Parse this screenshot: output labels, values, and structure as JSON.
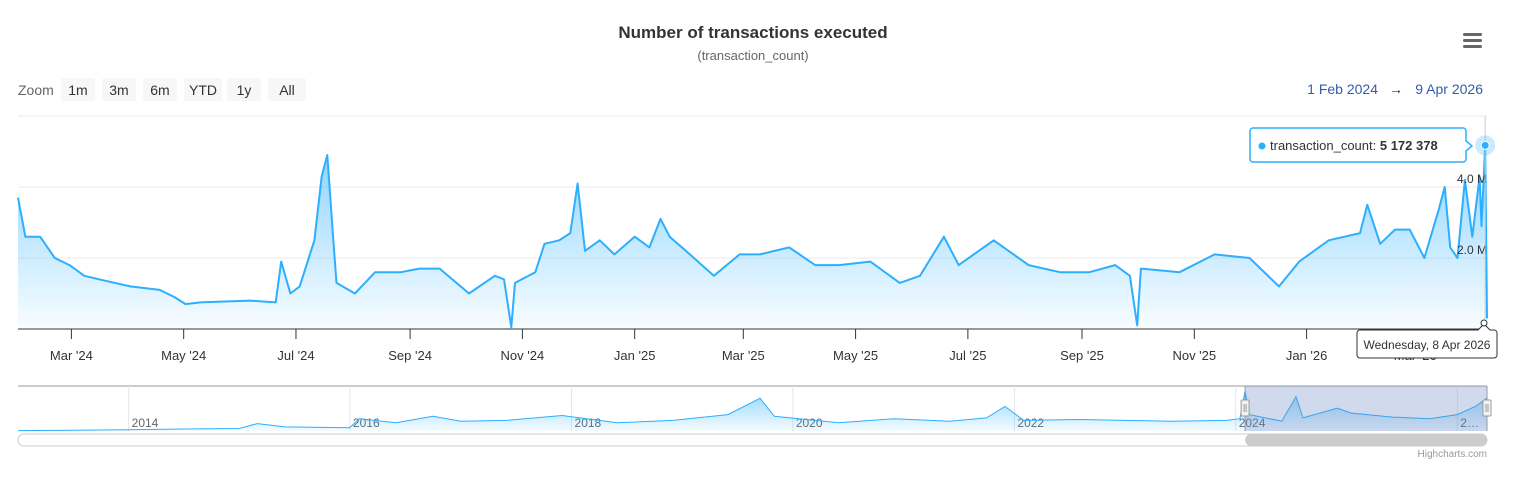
{
  "title": "Number of transactions executed",
  "subtitle": "(transaction_count)",
  "menu_icon": "hamburger-menu-icon",
  "range_selector": {
    "zoom_label": "Zoom",
    "buttons": [
      "1m",
      "3m",
      "6m",
      "YTD",
      "1y",
      "All"
    ],
    "from": "1 Feb 2024",
    "arrow": "→",
    "to": "9 Apr 2026"
  },
  "tooltip": {
    "series": "transaction_count",
    "value": "5 172 378",
    "date": "Wednesday, 8 Apr 2026"
  },
  "credits": "Highcharts.com",
  "colors": {
    "line": "#2caffe",
    "accent_text": "#335cad",
    "mask": "rgba(102,133,194,0.3)"
  },
  "chart_data": {
    "type": "area",
    "series": [
      {
        "name": "transaction_count",
        "points": [
          [
            "2024-02-01",
            3.7
          ],
          [
            "2024-02-05",
            2.6
          ],
          [
            "2024-02-13",
            2.6
          ],
          [
            "2024-02-21",
            2.0
          ],
          [
            "2024-02-29",
            1.8
          ],
          [
            "2024-03-08",
            1.5
          ],
          [
            "2024-03-16",
            1.4
          ],
          [
            "2024-04-02",
            1.2
          ],
          [
            "2024-04-18",
            1.1
          ],
          [
            "2024-04-26",
            0.9
          ],
          [
            "2024-05-02",
            0.7
          ],
          [
            "2024-05-10",
            0.75
          ],
          [
            "2024-06-06",
            0.8
          ],
          [
            "2024-06-20",
            0.75
          ],
          [
            "2024-06-23",
            1.9
          ],
          [
            "2024-06-28",
            1.0
          ],
          [
            "2024-07-03",
            1.2
          ],
          [
            "2024-07-11",
            2.5
          ],
          [
            "2024-07-15",
            4.3
          ],
          [
            "2024-07-18",
            4.9
          ],
          [
            "2024-07-21",
            2.7
          ],
          [
            "2024-07-23",
            1.3
          ],
          [
            "2024-08-02",
            1.0
          ],
          [
            "2024-08-13",
            1.6
          ],
          [
            "2024-08-27",
            1.6
          ],
          [
            "2024-09-06",
            1.7
          ],
          [
            "2024-09-17",
            1.7
          ],
          [
            "2024-10-03",
            1.0
          ],
          [
            "2024-10-17",
            1.5
          ],
          [
            "2024-10-22",
            1.4
          ],
          [
            "2024-10-26",
            0.05
          ],
          [
            "2024-10-28",
            1.3
          ],
          [
            "2024-11-08",
            1.6
          ],
          [
            "2024-11-13",
            2.4
          ],
          [
            "2024-11-21",
            2.5
          ],
          [
            "2024-11-27",
            2.7
          ],
          [
            "2024-12-01",
            4.1
          ],
          [
            "2024-12-05",
            2.2
          ],
          [
            "2024-12-13",
            2.5
          ],
          [
            "2024-12-21",
            2.1
          ],
          [
            "2025-01-01",
            2.6
          ],
          [
            "2025-01-09",
            2.3
          ],
          [
            "2025-01-15",
            3.1
          ],
          [
            "2025-01-20",
            2.6
          ],
          [
            "2025-01-31",
            2.1
          ],
          [
            "2025-02-13",
            1.5
          ],
          [
            "2025-02-27",
            2.1
          ],
          [
            "2025-03-10",
            2.1
          ],
          [
            "2025-03-26",
            2.3
          ],
          [
            "2025-04-09",
            1.8
          ],
          [
            "2025-04-22",
            1.8
          ],
          [
            "2025-05-09",
            1.9
          ],
          [
            "2025-05-25",
            1.3
          ],
          [
            "2025-06-05",
            1.5
          ],
          [
            "2025-06-18",
            2.6
          ],
          [
            "2025-06-26",
            1.8
          ],
          [
            "2025-07-15",
            2.5
          ],
          [
            "2025-08-03",
            1.8
          ],
          [
            "2025-08-20",
            1.6
          ],
          [
            "2025-09-05",
            1.6
          ],
          [
            "2025-09-19",
            1.8
          ],
          [
            "2025-09-27",
            1.5
          ],
          [
            "2025-10-01",
            0.1
          ],
          [
            "2025-10-03",
            1.7
          ],
          [
            "2025-10-24",
            1.6
          ],
          [
            "2025-11-12",
            2.1
          ],
          [
            "2025-12-01",
            2.0
          ],
          [
            "2025-12-17",
            1.2
          ],
          [
            "2025-12-28",
            1.9
          ],
          [
            "2026-01-13",
            2.5
          ],
          [
            "2026-01-30",
            2.7
          ],
          [
            "2026-02-03",
            3.5
          ],
          [
            "2026-02-10",
            2.4
          ],
          [
            "2026-02-18",
            2.8
          ],
          [
            "2026-02-26",
            2.8
          ],
          [
            "2026-03-06",
            2.0
          ],
          [
            "2026-03-14",
            3.4
          ],
          [
            "2026-03-17",
            4.0
          ],
          [
            "2026-03-20",
            2.3
          ],
          [
            "2026-03-24",
            2.0
          ],
          [
            "2026-03-28",
            4.2
          ],
          [
            "2026-04-01",
            2.6
          ],
          [
            "2026-04-05",
            4.3
          ],
          [
            "2026-04-06",
            2.9
          ],
          [
            "2026-04-08",
            5.172378
          ],
          [
            "2026-04-09",
            0.3
          ]
        ]
      }
    ],
    "x_range": [
      "2024-02-01",
      "2026-04-09"
    ],
    "x_ticks": [
      "Mar '24",
      "May '24",
      "Jul '24",
      "Sep '24",
      "Nov '24",
      "Jan '25",
      "Mar '25",
      "May '25",
      "Jul '25",
      "Sep '25",
      "Nov '25",
      "Jan '26",
      "Mar '26"
    ],
    "x_tick_dates": [
      "2024-03-01",
      "2024-05-01",
      "2024-07-01",
      "2024-09-01",
      "2024-11-01",
      "2025-01-01",
      "2025-03-01",
      "2025-05-01",
      "2025-07-01",
      "2025-09-01",
      "2025-11-01",
      "2026-01-01",
      "2026-03-01"
    ],
    "y_unit": "M",
    "ylim": [
      0,
      6
    ],
    "y_ticks": [
      {
        "value": 2,
        "label": "2.0 M"
      },
      {
        "value": 4,
        "label": "4.0 M"
      }
    ],
    "grid": true,
    "navigator": {
      "x_range": [
        "2013-01-01",
        "2026-04-09"
      ],
      "tick_labels": [
        "2014",
        "2016",
        "2018",
        "2020",
        "2022",
        "2024",
        "2…"
      ],
      "tick_dates": [
        "2014-01-01",
        "2016-01-01",
        "2018-01-01",
        "2020-01-01",
        "2022-01-01",
        "2024-01-01",
        "2026-01-01"
      ],
      "points": [
        [
          "2013-01-01",
          0.05
        ],
        [
          "2013-07-01",
          0.1
        ],
        [
          "2014-01-01",
          0.15
        ],
        [
          "2014-07-01",
          0.25
        ],
        [
          "2015-01-01",
          0.3
        ],
        [
          "2015-03-01",
          0.9
        ],
        [
          "2015-06-01",
          0.5
        ],
        [
          "2015-12-31",
          0.4
        ],
        [
          "2016-02-01",
          1.5
        ],
        [
          "2016-06-01",
          1.0
        ],
        [
          "2016-10-01",
          1.8
        ],
        [
          "2017-01-01",
          1.2
        ],
        [
          "2017-06-01",
          1.3
        ],
        [
          "2017-12-01",
          1.9
        ],
        [
          "2018-06-01",
          1.0
        ],
        [
          "2018-12-01",
          1.3
        ],
        [
          "2019-06-01",
          2.0
        ],
        [
          "2019-09-15",
          4.0
        ],
        [
          "2019-11-01",
          1.8
        ],
        [
          "2020-06-01",
          1.0
        ],
        [
          "2020-12-01",
          1.5
        ],
        [
          "2021-06-01",
          1.2
        ],
        [
          "2021-10-01",
          1.6
        ],
        [
          "2021-12-01",
          3.0
        ],
        [
          "2022-02-01",
          1.3
        ],
        [
          "2022-08-01",
          1.4
        ],
        [
          "2023-06-01",
          1.2
        ],
        [
          "2023-12-01",
          1.3
        ],
        [
          "2024-01-15",
          1.5
        ],
        [
          "2024-02-01",
          4.9
        ],
        [
          "2024-02-15",
          2.0
        ],
        [
          "2024-06-01",
          1.2
        ],
        [
          "2024-07-18",
          4.2
        ],
        [
          "2024-08-10",
          1.6
        ],
        [
          "2024-12-01",
          2.8
        ],
        [
          "2025-01-15",
          2.2
        ],
        [
          "2025-06-01",
          1.7
        ],
        [
          "2025-10-01",
          1.5
        ],
        [
          "2026-01-01",
          2.0
        ],
        [
          "2026-03-01",
          3.0
        ],
        [
          "2026-04-08",
          4.0
        ]
      ],
      "selected": [
        "2024-02-01",
        "2026-04-09"
      ]
    }
  }
}
